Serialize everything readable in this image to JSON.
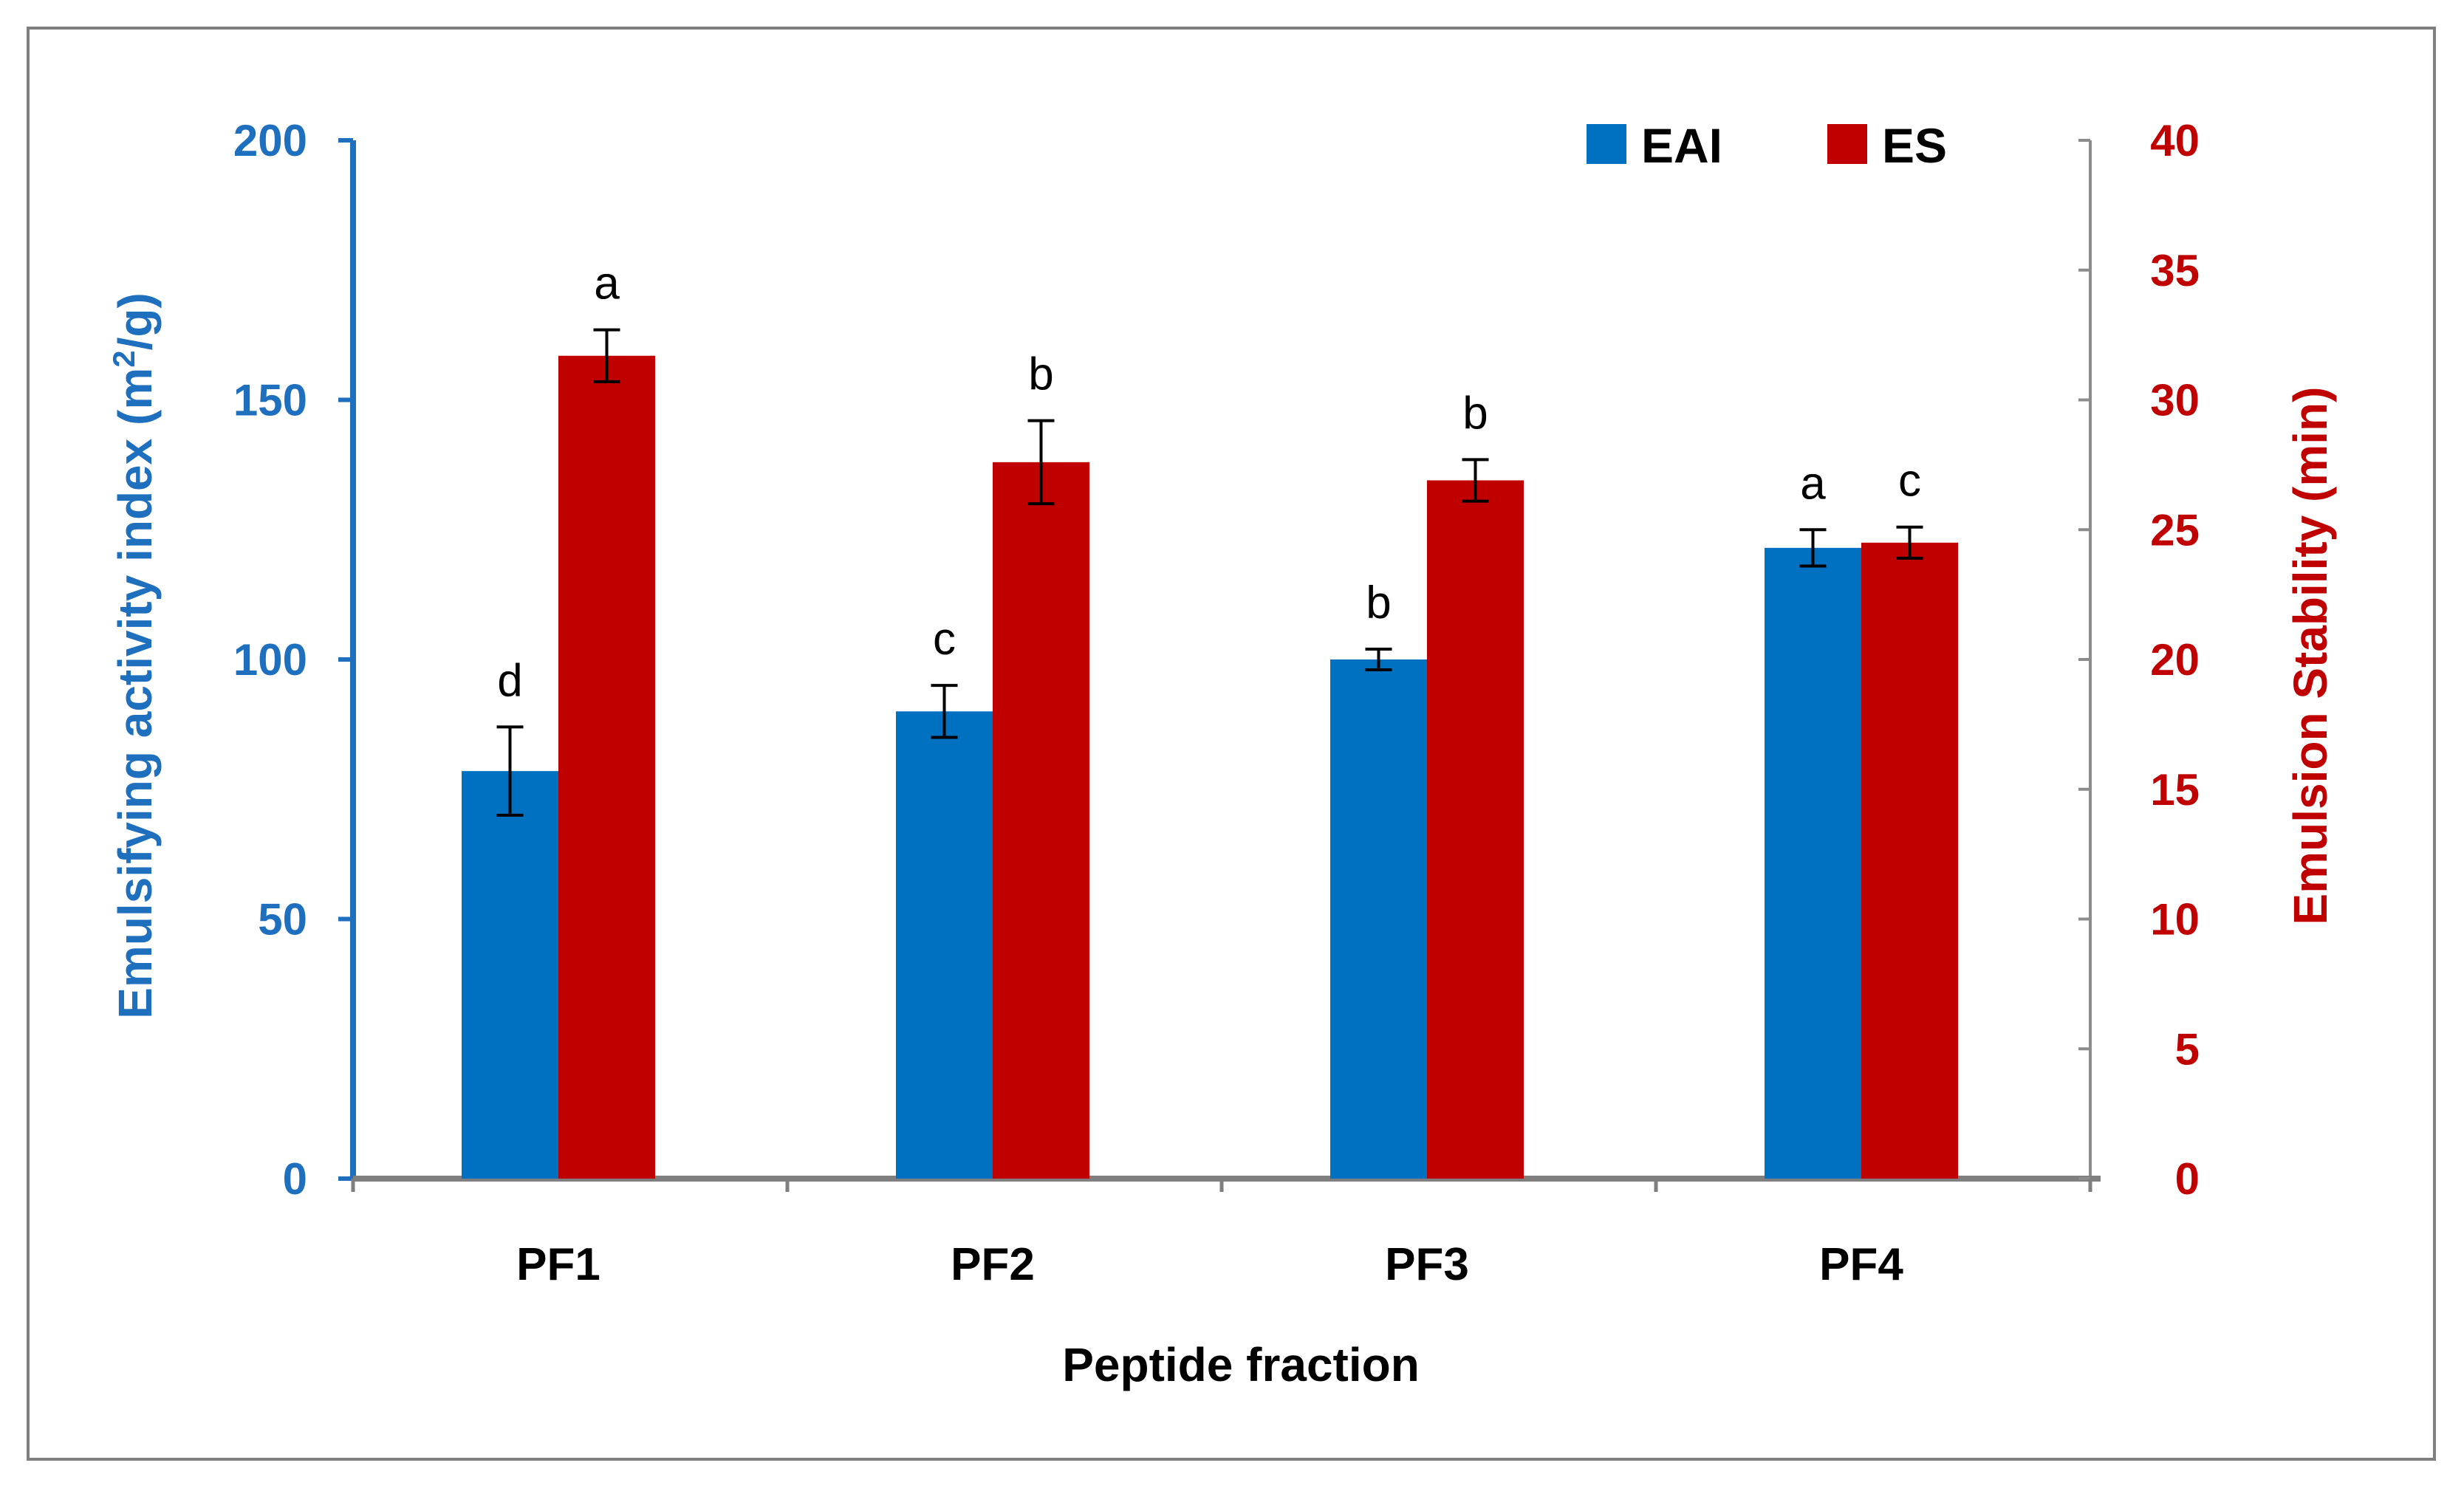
{
  "chart_data": {
    "type": "bar",
    "categories": [
      "PF1",
      "PF2",
      "PF3",
      "PF4"
    ],
    "xlabel": "Peptide fraction",
    "y_left": {
      "label_parts": [
        "Emulsifying activity index (m",
        "2",
        "/g)"
      ],
      "range": [
        0,
        200
      ],
      "ticks": [
        "0",
        "50",
        "100",
        "150",
        "200"
      ],
      "color": "#1f6fbf"
    },
    "y_right": {
      "label": "Emulsion Stability (min)",
      "range": [
        0,
        40
      ],
      "ticks": [
        "0",
        "5",
        "10",
        "15",
        "20",
        "25",
        "30",
        "35",
        "40"
      ],
      "color": "#c00000"
    },
    "series": [
      {
        "name": "EAI",
        "axis": "left",
        "color": "#0070c0",
        "values": [
          78.5,
          90,
          100,
          121.5
        ],
        "errors": [
          8.5,
          5,
          2,
          3.5
        ],
        "significance": [
          "d",
          "c",
          "b",
          "a"
        ]
      },
      {
        "name": "ES",
        "axis": "right",
        "color": "#c00000",
        "values": [
          31.7,
          27.6,
          26.9,
          24.5
        ],
        "errors": [
          1.0,
          1.6,
          0.8,
          0.6
        ],
        "significance": [
          "a",
          "b",
          "b",
          "c"
        ]
      }
    ],
    "legend": {
      "position": "top-right",
      "entries": [
        "EAI",
        "ES"
      ]
    }
  }
}
